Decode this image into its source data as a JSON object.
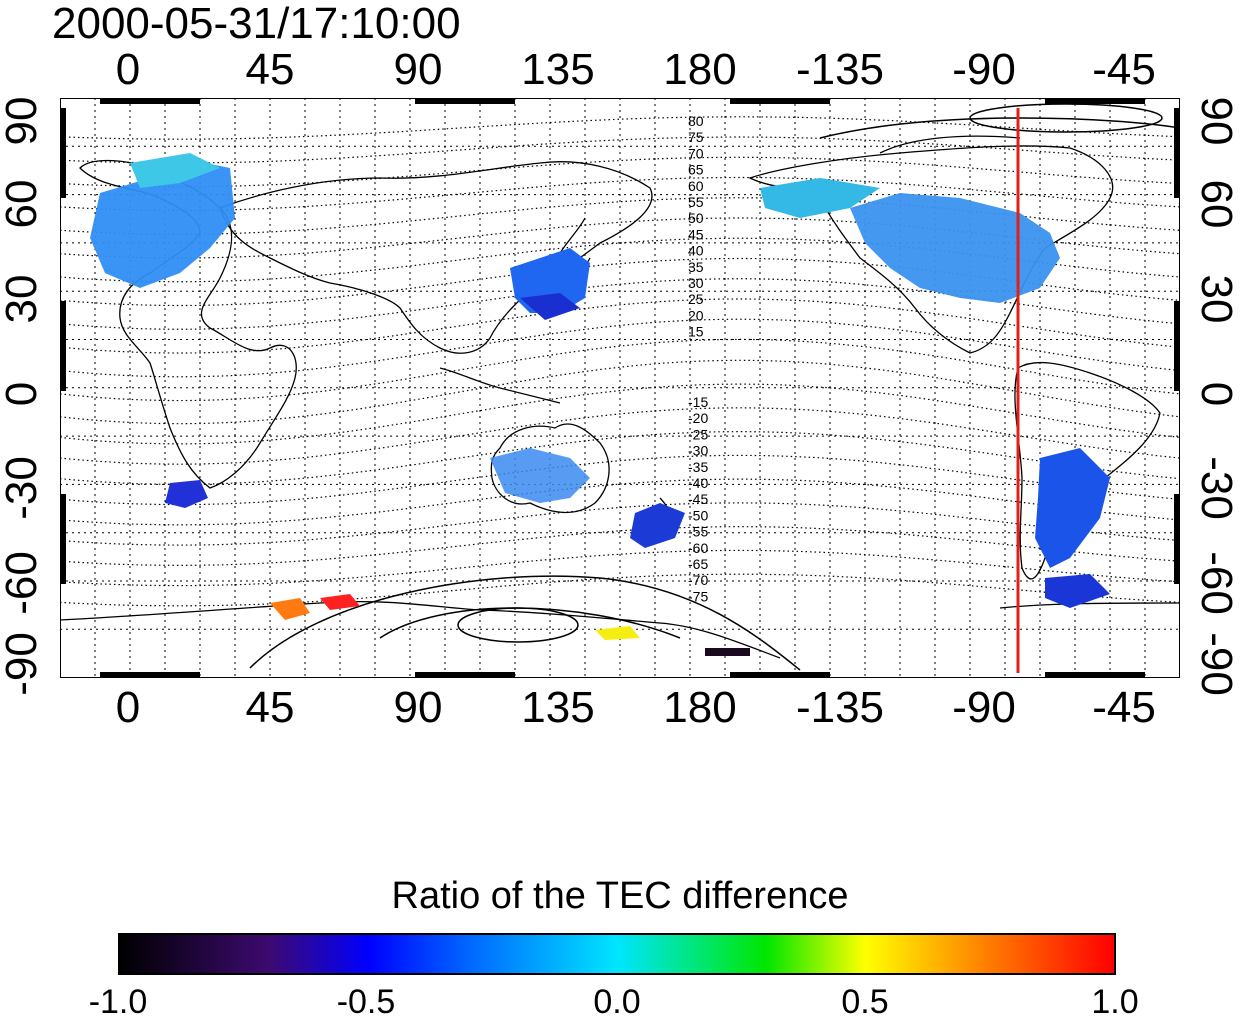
{
  "timestamp": "2000-05-31/17:10:00",
  "map": {
    "title": "2000-05-31/17:10:00",
    "longitude_ticks": [
      "0",
      "45",
      "90",
      "135",
      "180",
      "-135",
      "-90",
      "-45"
    ],
    "latitude_ticks": [
      "90",
      "60",
      "30",
      "0",
      "-30",
      "-60",
      "-90"
    ],
    "contour_labels_north": [
      "80",
      "75",
      "70",
      "65",
      "60",
      "55",
      "50",
      "45",
      "40",
      "35",
      "30",
      "25",
      "20",
      "15"
    ],
    "contour_labels_south": [
      "-15",
      "-20",
      "-25",
      "-30",
      "-35",
      "-40",
      "-45",
      "-50",
      "-55",
      "-60",
      "-65",
      "-70",
      "-75"
    ],
    "marker_line": {
      "longitude": -78,
      "color": "#e0201a"
    },
    "grid": true
  },
  "colorbar": {
    "title": "Ratio of the TEC difference",
    "tick_labels": [
      "-1.0",
      "-0.5",
      "0.0",
      "0.5",
      "1.0"
    ],
    "range": [
      -1.0,
      1.0
    ],
    "colormap": [
      "#000000",
      "#3d0a70",
      "#0000ff",
      "#0066ff",
      "#00e5ff",
      "#00e600",
      "#ffff00",
      "#ff8000",
      "#ff0000"
    ]
  }
}
